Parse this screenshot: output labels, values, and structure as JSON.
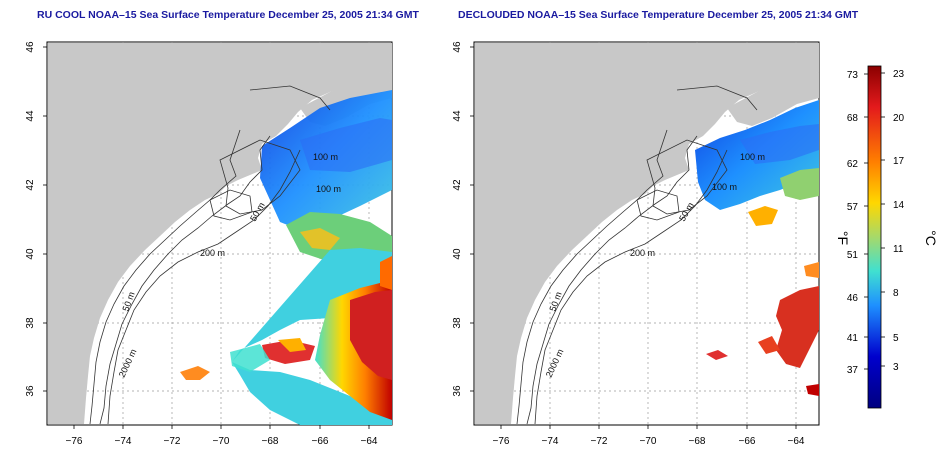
{
  "titles": {
    "left": "RU COOL NOAA–15 Sea Surface Temperature December 25, 2005 21:34 GMT",
    "right": "DECLOUDED NOAA–15 Sea Surface Temperature December 25, 2005 21:34 GMT"
  },
  "axes": {
    "lat_ticks": [
      "46",
      "44",
      "42",
      "40",
      "38",
      "36"
    ],
    "lon_ticks": [
      "−76",
      "−74",
      "−72",
      "−70",
      "−68",
      "−66",
      "−64"
    ]
  },
  "isobaths": {
    "left": [
      "100 m",
      "100 m",
      "50 m",
      "200 m",
      "50 m",
      "2000 m"
    ],
    "right": [
      "100 m",
      "100 m",
      "50 m",
      "200 m",
      "50 m",
      "2000 m"
    ]
  },
  "colorbar": {
    "fahrenheit_ticks": [
      "73",
      "68",
      "62",
      "57",
      "51",
      "46",
      "41",
      "37"
    ],
    "celsius_ticks": [
      "23",
      "20",
      "17",
      "14",
      "11",
      "8",
      "5",
      "3"
    ],
    "fahrenheit_unit": "°F",
    "celsius_unit": "°C",
    "colors": [
      "#8b0000",
      "#e31a1c",
      "#ff7f00",
      "#ffd700",
      "#a6d96a",
      "#40e0d0",
      "#1e90ff",
      "#0000cd",
      "#000080"
    ]
  },
  "colors": {
    "land": "#c8c8c8",
    "ocean": "#ffffff",
    "title": "#1a1aa0"
  }
}
